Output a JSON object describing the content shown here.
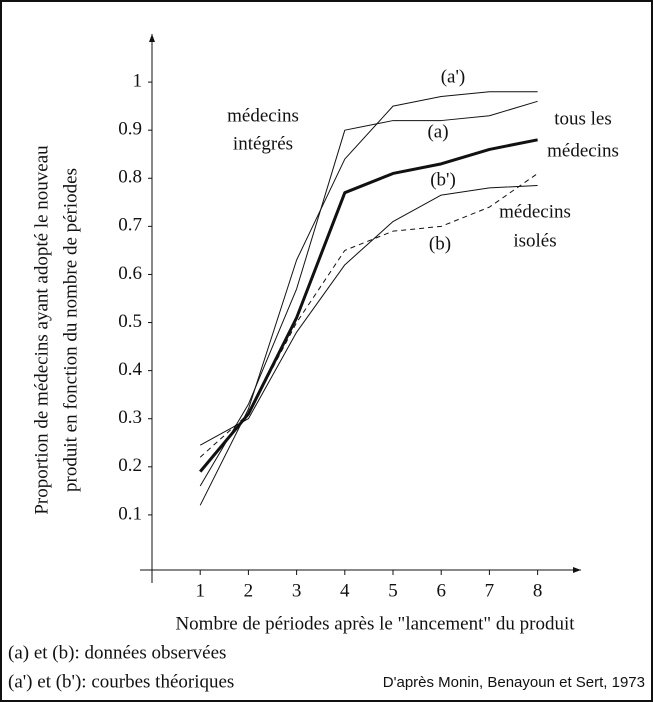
{
  "chart_data": {
    "type": "line",
    "ylabel": [
      "Proportion de médecins ayant adopté le nouveau",
      "produit en fonction du nombre de périodes"
    ],
    "xlabel": "Nombre de périodes après le \"lancement\" du produit",
    "notes": [
      "(a) et (b): données observées",
      "(a') et (b'): courbes théoriques"
    ],
    "source": "D'après Monin, Benayoun et Sert, 1973",
    "annotations": [
      "(a')",
      "médecins",
      "intégrés",
      "(a)",
      "tous les",
      "médecins",
      "(b')",
      "médecins",
      "isolés",
      "(b)"
    ],
    "x": [
      1,
      2,
      3,
      4,
      5,
      6,
      7,
      8
    ],
    "xlim": [
      0,
      8.9
    ],
    "xticks": [
      1,
      2,
      3,
      4,
      5,
      6,
      7,
      8
    ],
    "ylim": [
      0,
      1.1
    ],
    "yticks": [
      0.1,
      0.2,
      0.3,
      0.4,
      0.5,
      0.6,
      0.7,
      0.8,
      0.9,
      1
    ],
    "series": [
      {
        "color": "#111",
        "line_width": 3,
        "line_style": "solid",
        "values": [
          0.19,
          0.31,
          0.51,
          0.77,
          0.81,
          0.83,
          0.86,
          0.88
        ]
      },
      {
        "color": "#111",
        "line_width": 1,
        "line_style": "solid",
        "values": [
          0.16,
          0.33,
          0.57,
          0.9,
          0.92,
          0.92,
          0.93,
          0.96
        ]
      },
      {
        "color": "#111",
        "line_width": 1,
        "line_style": "solid",
        "values": [
          0.12,
          0.32,
          0.63,
          0.84,
          0.95,
          0.97,
          0.98,
          0.98
        ]
      },
      {
        "color": "#111",
        "line_width": 1,
        "line_style": "dashed",
        "values": [
          0.22,
          0.31,
          0.5,
          0.65,
          0.69,
          0.7,
          0.74,
          0.81
        ]
      },
      {
        "color": "#111",
        "line_width": 1,
        "line_style": "solid",
        "values": [
          0.245,
          0.3,
          0.48,
          0.62,
          0.71,
          0.765,
          0.78,
          0.785
        ]
      }
    ]
  }
}
